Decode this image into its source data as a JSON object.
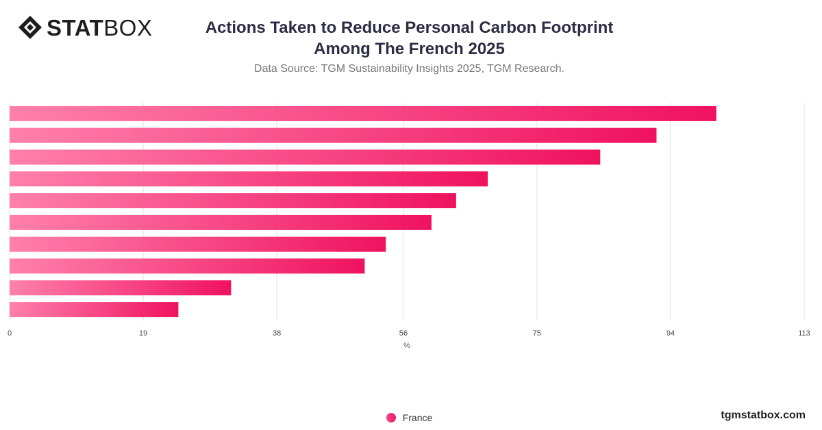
{
  "brand": {
    "logo_bold": "STAT",
    "logo_light": "BOX",
    "watermark": "tgmstatbox.com"
  },
  "header": {
    "title_line1": "Actions Taken to Reduce Personal Carbon Footprint",
    "title_line2": "Among The French 2025",
    "subtitle": "Data Source: TGM Sustainability Insights 2025, TGM Research."
  },
  "legend": {
    "label": "France"
  },
  "colors": {
    "bar_start": "#ff80ab",
    "bar_end": "#f0125f",
    "grid": "#e0e0e0",
    "text": "#333333"
  },
  "chart_data": {
    "type": "bar",
    "orientation": "horizontal",
    "categories": [
      "",
      "",
      "",
      "",
      "",
      "",
      "",
      "",
      "",
      ""
    ],
    "series": [
      {
        "name": "France",
        "values": [
          100.5,
          92,
          84,
          68,
          63.5,
          60,
          53.5,
          50.5,
          31.5,
          24
        ]
      }
    ],
    "xlabel": "%",
    "xticks": [
      0,
      19,
      38,
      56,
      75,
      94,
      113
    ],
    "xlim": [
      0,
      113
    ],
    "grid": true,
    "legend_position": "bottom-center"
  }
}
